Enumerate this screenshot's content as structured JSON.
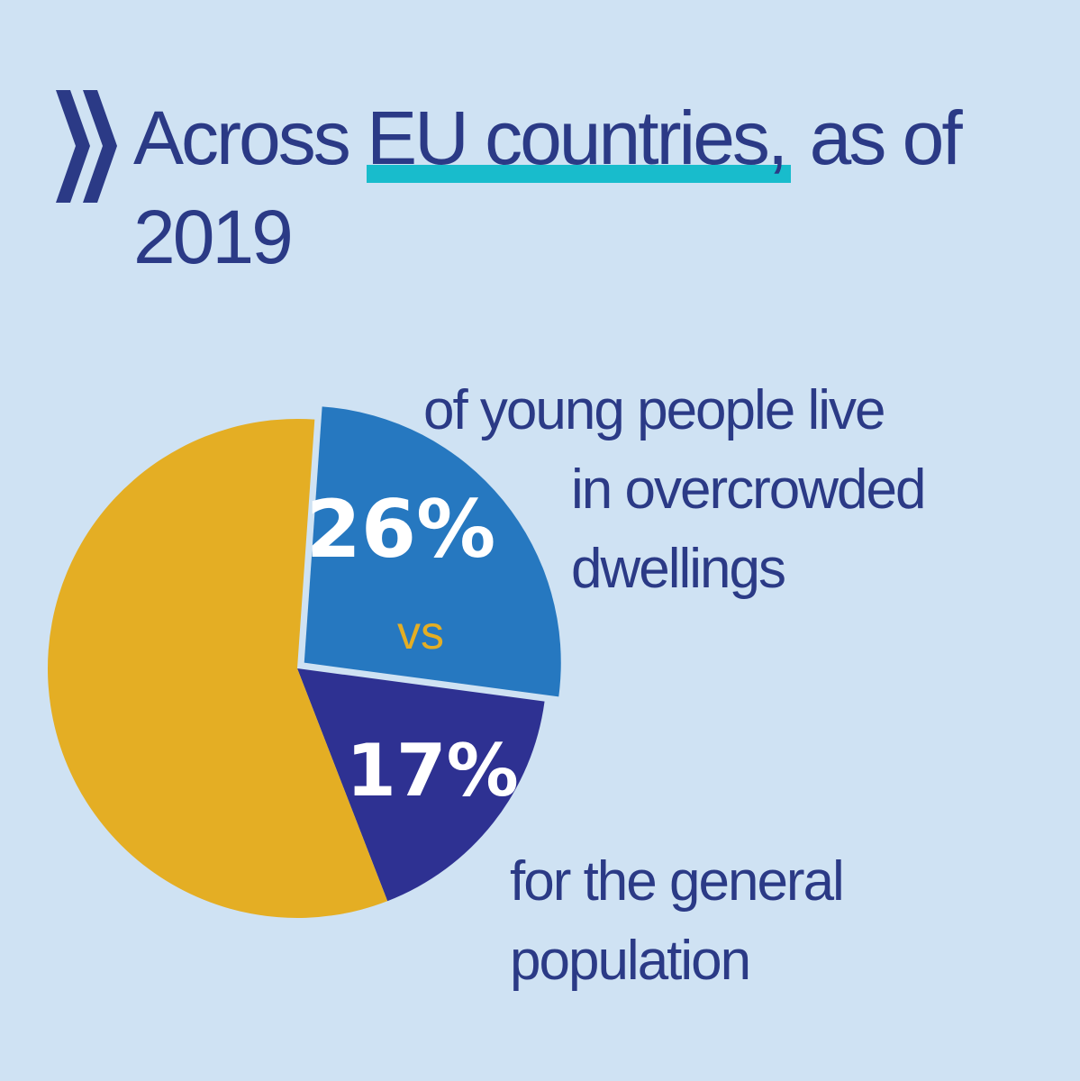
{
  "headline": {
    "prefix": "Across ",
    "highlight": "EU countries,",
    "suffix": " as of 2019"
  },
  "colors": {
    "background": "#cfe2f3",
    "text": "#2b3a86",
    "highlight_bar": "#18bccc",
    "pie_young": "#2678c0",
    "pie_general": "#2e3192",
    "pie_rest": "#e4ae24",
    "vs_text": "#e4ae24",
    "percent_text": "#ffffff"
  },
  "young_note": {
    "line1": "of young people live",
    "line2": "in overcrowded",
    "line3": "dwellings"
  },
  "general_note": {
    "line1": "for the general",
    "line2": "population"
  },
  "chart_data": {
    "type": "pie",
    "title": "Across EU countries, as of 2019",
    "slices": [
      {
        "name": "Young people in overcrowded dwellings",
        "label": "26%",
        "value": 26,
        "color": "#2678c0",
        "exploded": true
      },
      {
        "name": "General population in overcrowded dwellings",
        "label": "17%",
        "value": 17,
        "color": "#2e3192",
        "exploded": false
      },
      {
        "name": "Other",
        "label": "",
        "value": 57,
        "color": "#e4ae24",
        "exploded": false
      }
    ],
    "connector_label": "vs"
  }
}
